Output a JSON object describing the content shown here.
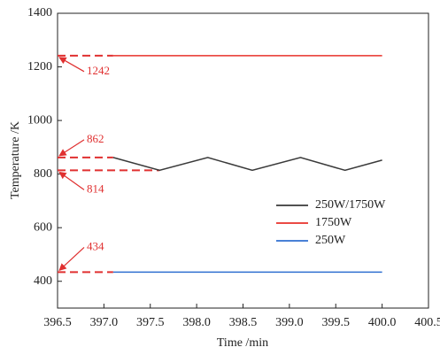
{
  "chart_data": {
    "type": "line",
    "x_label": "Time /min",
    "y_label": "Temperature /K",
    "xlim": [
      396.5,
      400.5
    ],
    "xticks": [
      396.5,
      {
        "value": 397,
        "label": "397.0"
      },
      397.5,
      {
        "value": 398,
        "label": "398.0"
      },
      398.5,
      {
        "value": 399,
        "label": "399.0"
      },
      399.5,
      {
        "value": 400,
        "label": "400.0"
      },
      400.5
    ],
    "ylim": [
      300,
      1400
    ],
    "yticks": [
      400,
      600,
      800,
      1000,
      1200,
      1400
    ],
    "legend": "center right",
    "series": [
      {
        "name": "250W/1750W",
        "color": "#3a3a3a",
        "x": [
          397.1,
          397.6,
          398.12,
          398.6,
          399.12,
          399.6,
          400.0
        ],
        "values": [
          862,
          814,
          862,
          814,
          862,
          814,
          852
        ]
      },
      {
        "name": "1750W",
        "color": "#e8302a",
        "x": [
          397.1,
          400.0
        ],
        "values": [
          1242,
          1242
        ]
      },
      {
        "name": "250W",
        "color": "#2f6fd0",
        "x": [
          397.1,
          400.0
        ],
        "values": [
          434,
          434
        ]
      }
    ],
    "annotations": [
      {
        "y": 1242,
        "x": [
          396.5,
          397.1
        ]
      },
      {
        "y": 862,
        "x": [
          396.5,
          397.1
        ]
      },
      {
        "y": 814,
        "x": [
          396.5,
          397.6
        ]
      },
      {
        "y": 434,
        "x": [
          396.5,
          397.1
        ]
      }
    ],
    "annotation_color": "#e03030"
  }
}
